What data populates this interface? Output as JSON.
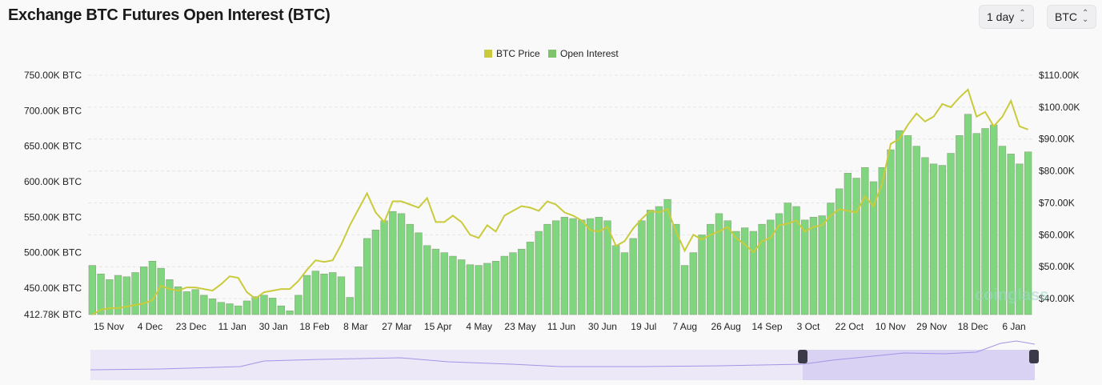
{
  "header": {
    "title": "Exchange BTC Futures Open Interest (BTC)",
    "interval_select": "1 day",
    "unit_select": "BTC"
  },
  "watermark": "coinglass",
  "colors": {
    "price": "#c9cb3c",
    "open_interest": "#7fd67f",
    "navigator": "#d9d2f3",
    "navigator_line": "#a594e6"
  },
  "chart_data": {
    "type": "bar+line",
    "title": "Exchange BTC Futures Open Interest (BTC)",
    "legend": {
      "position": "top-center",
      "entries": [
        "BTC Price",
        "Open Interest"
      ]
    },
    "grid": true,
    "x_tick_labels": [
      "15 Nov",
      "4 Dec",
      "23 Dec",
      "11 Jan",
      "30 Jan",
      "18 Feb",
      "8 Mar",
      "27 Mar",
      "15 Apr",
      "4 May",
      "23 May",
      "11 Jun",
      "30 Jun",
      "19 Jul",
      "7 Aug",
      "26 Aug",
      "14 Sep",
      "3 Oct",
      "22 Oct",
      "10 Nov",
      "29 Nov",
      "18 Dec",
      "6 Jan"
    ],
    "y_left": {
      "label": "",
      "unit": "K BTC",
      "ylim": [
        412.78,
        750
      ],
      "tick_labels": [
        "750.00K BTC",
        "700.00K BTC",
        "650.00K BTC",
        "600.00K BTC",
        "550.00K BTC",
        "500.00K BTC",
        "450.00K BTC",
        "412.78K BTC"
      ],
      "tick_values": [
        750,
        700,
        650,
        600,
        550,
        500,
        450,
        412.78
      ]
    },
    "y_right": {
      "label": "",
      "unit": "K USD",
      "ylim": [
        35,
        110
      ],
      "tick_labels": [
        "$110.00K",
        "$100.00K",
        "$90.00K",
        "$80.00K",
        "$70.00K",
        "$60.00K",
        "$50.00K",
        "$40.00K"
      ],
      "tick_values": [
        110,
        100,
        90,
        80,
        70,
        60,
        50,
        40
      ]
    },
    "x": [
      "2023-11-05",
      "2023-11-09",
      "2023-11-13",
      "2023-11-17",
      "2023-11-21",
      "2023-11-25",
      "2023-11-29",
      "2023-12-03",
      "2023-12-07",
      "2023-12-11",
      "2023-12-15",
      "2023-12-19",
      "2023-12-23",
      "2023-12-27",
      "2023-12-31",
      "2024-01-04",
      "2024-01-08",
      "2024-01-12",
      "2024-01-16",
      "2024-01-20",
      "2024-01-24",
      "2024-01-28",
      "2024-02-01",
      "2024-02-05",
      "2024-02-09",
      "2024-02-13",
      "2024-02-17",
      "2024-02-21",
      "2024-02-25",
      "2024-02-29",
      "2024-03-04",
      "2024-03-08",
      "2024-03-12",
      "2024-03-16",
      "2024-03-20",
      "2024-03-24",
      "2024-03-28",
      "2024-04-01",
      "2024-04-05",
      "2024-04-09",
      "2024-04-13",
      "2024-04-17",
      "2024-04-21",
      "2024-04-25",
      "2024-04-29",
      "2024-05-03",
      "2024-05-07",
      "2024-05-11",
      "2024-05-15",
      "2024-05-19",
      "2024-05-23",
      "2024-05-27",
      "2024-05-31",
      "2024-06-04",
      "2024-06-08",
      "2024-06-12",
      "2024-06-16",
      "2024-06-20",
      "2024-06-24",
      "2024-06-28",
      "2024-07-02",
      "2024-07-06",
      "2024-07-10",
      "2024-07-14",
      "2024-07-18",
      "2024-07-22",
      "2024-07-26",
      "2024-07-30",
      "2024-08-03",
      "2024-08-07",
      "2024-08-11",
      "2024-08-15",
      "2024-08-19",
      "2024-08-23",
      "2024-08-27",
      "2024-08-31",
      "2024-09-04",
      "2024-09-08",
      "2024-09-12",
      "2024-09-16",
      "2024-09-20",
      "2024-09-24",
      "2024-09-28",
      "2024-10-02",
      "2024-10-06",
      "2024-10-10",
      "2024-10-14",
      "2024-10-18",
      "2024-10-22",
      "2024-10-26",
      "2024-10-30",
      "2024-11-03",
      "2024-11-07",
      "2024-11-11",
      "2024-11-15",
      "2024-11-19",
      "2024-11-23",
      "2024-11-27",
      "2024-12-01",
      "2024-12-05",
      "2024-12-09",
      "2024-12-13",
      "2024-12-17",
      "2024-12-21",
      "2024-12-25",
      "2024-12-29",
      "2025-01-02",
      "2025-01-06",
      "2025-01-10",
      "2025-01-14"
    ],
    "series": [
      {
        "name": "Open Interest",
        "type": "bar",
        "axis": "left",
        "values": [
          482,
          470,
          462,
          468,
          466,
          472,
          480,
          488,
          478,
          462,
          452,
          445,
          448,
          440,
          435,
          430,
          428,
          425,
          432,
          438,
          440,
          436,
          425,
          418,
          440,
          468,
          474,
          470,
          472,
          466,
          437,
          480,
          520,
          532,
          545,
          558,
          555,
          540,
          528,
          510,
          505,
          500,
          495,
          490,
          483,
          482,
          485,
          488,
          495,
          500,
          505,
          515,
          530,
          540,
          545,
          550,
          548,
          546,
          548,
          550,
          545,
          510,
          500,
          520,
          545,
          560,
          565,
          575,
          540,
          482,
          500,
          525,
          540,
          555,
          545,
          530,
          535,
          530,
          540,
          546,
          555,
          570,
          565,
          546,
          550,
          552,
          570,
          590,
          612,
          605,
          620,
          600,
          620,
          645,
          672,
          665,
          650,
          634,
          625,
          623,
          640,
          665,
          695,
          668,
          675,
          680,
          650,
          639,
          625,
          642
        ]
      },
      {
        "name": "BTC Price",
        "type": "line",
        "axis": "right",
        "values": [
          35,
          36.5,
          37,
          37,
          37.5,
          38,
          38.5,
          39.5,
          44,
          43,
          42.5,
          43.5,
          43.5,
          43,
          42.5,
          44.5,
          47,
          46.5,
          42,
          40,
          42,
          42.5,
          43,
          43,
          45.5,
          49,
          52,
          51.5,
          52,
          57,
          63,
          68,
          73,
          67,
          64,
          70.5,
          70.5,
          69.5,
          68.5,
          71.5,
          64,
          64,
          66,
          64,
          60,
          59,
          63,
          61,
          66,
          67.5,
          69,
          68.5,
          67.5,
          70.5,
          69.5,
          67,
          66,
          64.5,
          61.5,
          61,
          62.5,
          56.5,
          58,
          62,
          65,
          67.5,
          67,
          68,
          61,
          55,
          60,
          58.5,
          60,
          61,
          62.5,
          59,
          57,
          54.5,
          58,
          59,
          63,
          63.5,
          64.5,
          61,
          62.5,
          63,
          66,
          68,
          67.5,
          67,
          72,
          69,
          76,
          88.5,
          90,
          94.5,
          98,
          95.5,
          97,
          101,
          100,
          103,
          105.5,
          97,
          98.5,
          94,
          97,
          102,
          94,
          93
        ]
      }
    ]
  }
}
